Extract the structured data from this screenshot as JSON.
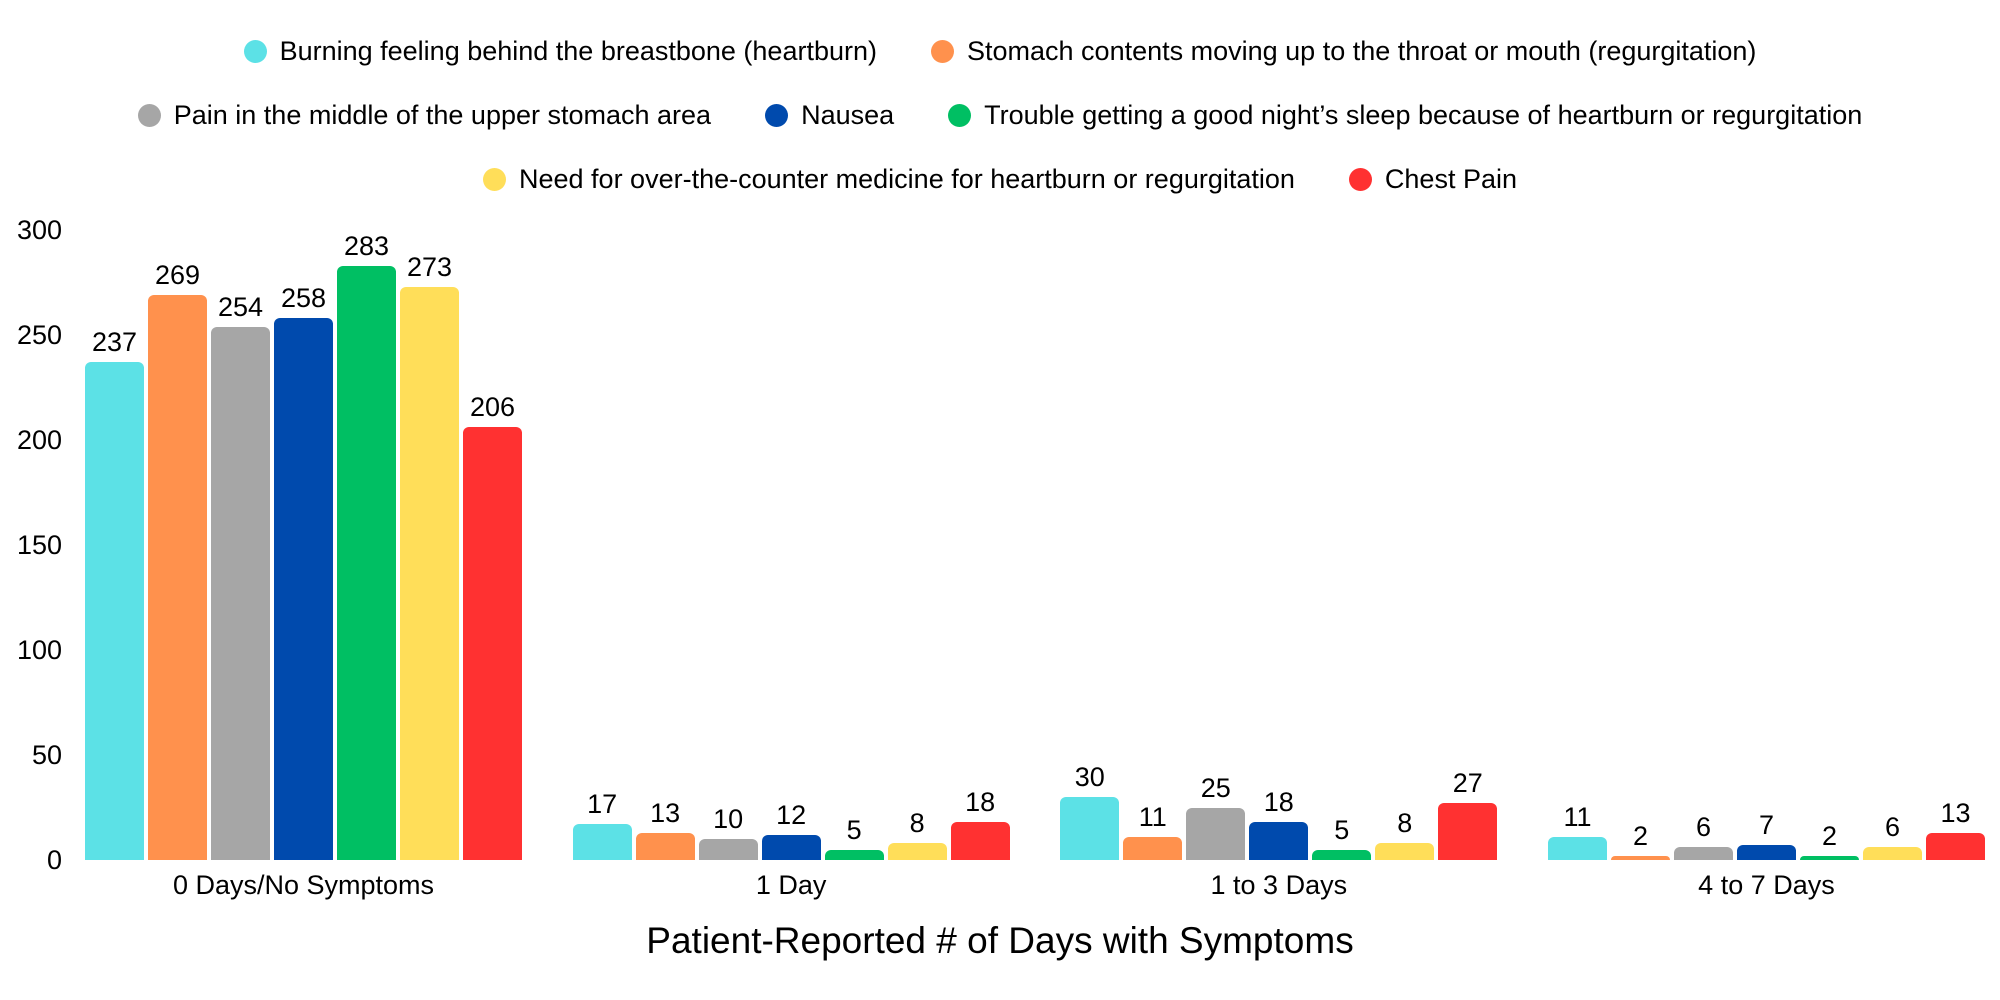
{
  "chart_data": {
    "type": "bar",
    "title": "Patient-Reported # of Days with Symptoms",
    "categories": [
      "0 Days/No Symptoms",
      "1 Day",
      "1 to 3 Days",
      "4 to 7 Days"
    ],
    "series": [
      {
        "name": "Burning feeling behind the breastbone (heartburn)",
        "color": "#5CE1E6",
        "values": [
          237,
          17,
          30,
          11
        ]
      },
      {
        "name": "Stomach contents moving up to the throat or mouth (regurgitation)",
        "color": "#FF914D",
        "values": [
          269,
          13,
          11,
          2
        ]
      },
      {
        "name": "Pain in the middle of the upper stomach area",
        "color": "#A6A6A6",
        "values": [
          254,
          10,
          25,
          6
        ]
      },
      {
        "name": "Nausea",
        "color": "#004AAD",
        "values": [
          258,
          12,
          18,
          7
        ]
      },
      {
        "name": "Trouble getting a good night’s sleep because of heartburn or regurgitation",
        "color": "#00BF63",
        "values": [
          283,
          5,
          5,
          2
        ]
      },
      {
        "name": "Need for over-the-counter medicine for heartburn or regurgitation",
        "color": "#FFDE59",
        "values": [
          273,
          8,
          8,
          6
        ]
      },
      {
        "name": "Chest Pain",
        "color": "#FF3131",
        "values": [
          206,
          18,
          27,
          13
        ]
      }
    ],
    "xlabel": "Patient-Reported # of Days with Symptoms",
    "ylabel": "",
    "ylim": [
      0,
      300
    ],
    "yticks": [
      0,
      50,
      100,
      150,
      200,
      250,
      300
    ],
    "grid": false,
    "legend_position": "top",
    "legend_rows": [
      [
        0,
        1
      ],
      [
        2,
        3,
        4
      ],
      [
        5,
        6
      ]
    ],
    "text_color": "#000000",
    "background_color": "#FFFFFF"
  }
}
